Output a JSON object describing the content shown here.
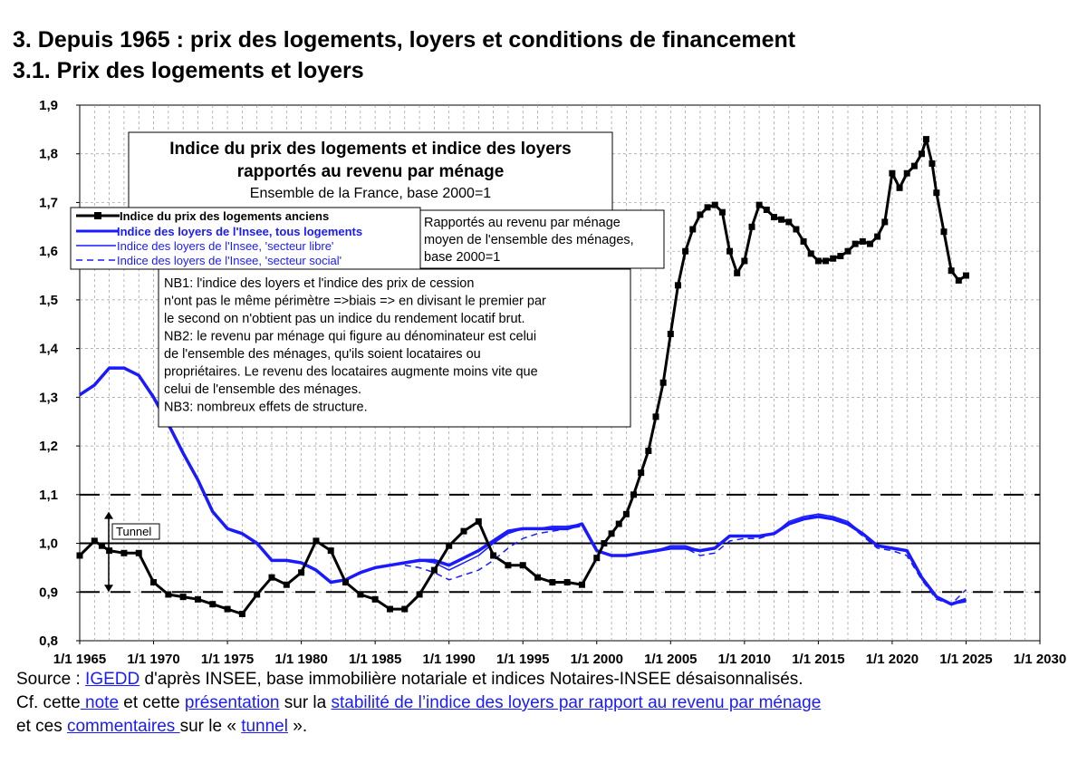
{
  "header": {
    "title": "3. Depuis 1965 : prix des logements, loyers et conditions de financement",
    "subtitle": "3.1. Prix des logements et loyers"
  },
  "chart_data": {
    "type": "line",
    "title": "Indice du prix des logements et indice des loyers",
    "title_line2": "rapportés au revenu par ménage",
    "subtitle": "Ensemble de la France, base 2000=1",
    "ylim": [
      0.8,
      1.9
    ],
    "yticks": [
      "0,8",
      "0,9",
      "1,0",
      "1,1",
      "1,2",
      "1,3",
      "1,4",
      "1,5",
      "1,6",
      "1,7",
      "1,8",
      "1,9"
    ],
    "xlim": [
      1965,
      2030
    ],
    "xticks": [
      "1/1 1965",
      "1/1 1970",
      "1/1 1975",
      "1/1 1980",
      "1/1 1985",
      "1/1 1990",
      "1/1 1995",
      "1/1 2000",
      "1/1 2005",
      "1/1 2010",
      "1/1 2015",
      "1/1 2020",
      "1/1 2025",
      "1/1 2030"
    ],
    "grid": true,
    "legend_position": "top-left",
    "reference_lines": {
      "solid": 1.0,
      "dashed": [
        0.9,
        1.1
      ]
    },
    "tunnel_label": "Tunnel",
    "side_note": [
      "Rapportés au revenu par ménage",
      "moyen de l'ensemble des ménages,",
      "base 2000=1"
    ],
    "notes": [
      "NB1: l'indice des loyers et l'indice des prix de cession",
      "n'ont pas le même périmètre =>biais => en divisant le premier par",
      "le second on n'obtient pas un indice du rendement locatif brut.",
      "NB2: le revenu par ménage qui figure au dénominateur est celui",
      "de l'ensemble des ménages, qu'ils soient locataires ou",
      "propriétaires.  Le revenu des locataires augmente moins vite que",
      "celui de l'ensemble des ménages.",
      "NB3: nombreux effets de structure."
    ],
    "colors": {
      "price": "#000000",
      "rent": "#1a1aff"
    },
    "series": [
      {
        "name": "Indice du prix des logements anciens",
        "style": "black-square-markers",
        "x": [
          1965,
          1966,
          1966.5,
          1967,
          1968,
          1969,
          1970,
          1971,
          1972,
          1973,
          1974,
          1975,
          1976,
          1977,
          1978,
          1979,
          1980,
          1981,
          1982,
          1983,
          1984,
          1985,
          1986,
          1987,
          1988,
          1989,
          1990,
          1991,
          1992,
          1993,
          1994,
          1995,
          1996,
          1997,
          1998,
          1999,
          2000,
          2000.5,
          2001,
          2001.5,
          2002,
          2002.5,
          2003,
          2003.5,
          2004,
          2004.5,
          2005,
          2005.5,
          2006,
          2006.5,
          2007,
          2007.5,
          2008,
          2008.5,
          2009,
          2009.5,
          2010,
          2010.5,
          2011,
          2011.5,
          2012,
          2012.5,
          2013,
          2013.5,
          2014,
          2014.5,
          2015,
          2015.5,
          2016,
          2016.5,
          2017,
          2017.5,
          2018,
          2018.5,
          2019,
          2019.5,
          2020,
          2020.5,
          2021,
          2021.5,
          2022,
          2022.3,
          2022.7,
          2023,
          2023.5,
          2024,
          2024.5,
          2025
        ],
        "values": [
          0.975,
          1.005,
          0.995,
          0.985,
          0.98,
          0.98,
          0.92,
          0.895,
          0.89,
          0.885,
          0.875,
          0.865,
          0.855,
          0.895,
          0.93,
          0.915,
          0.94,
          1.005,
          0.985,
          0.92,
          0.895,
          0.885,
          0.865,
          0.865,
          0.895,
          0.945,
          0.995,
          1.025,
          1.045,
          0.975,
          0.955,
          0.955,
          0.93,
          0.92,
          0.92,
          0.915,
          0.97,
          1.0,
          1.02,
          1.04,
          1.06,
          1.1,
          1.145,
          1.19,
          1.26,
          1.33,
          1.43,
          1.53,
          1.6,
          1.645,
          1.675,
          1.69,
          1.695,
          1.68,
          1.6,
          1.555,
          1.58,
          1.65,
          1.695,
          1.685,
          1.67,
          1.665,
          1.66,
          1.645,
          1.62,
          1.595,
          1.58,
          1.58,
          1.585,
          1.59,
          1.6,
          1.615,
          1.62,
          1.615,
          1.63,
          1.66,
          1.76,
          1.73,
          1.76,
          1.775,
          1.8,
          1.83,
          1.78,
          1.72,
          1.64,
          1.56,
          1.54,
          1.55
        ]
      },
      {
        "name": "Indice des loyers de l'Insee, tous logements",
        "style": "blue-thick",
        "x": [
          1965,
          1966,
          1967,
          1968,
          1969,
          1970,
          1971,
          1972,
          1973,
          1974,
          1975,
          1976,
          1977,
          1978,
          1979,
          1980,
          1981,
          1982,
          1983,
          1984,
          1985,
          1986,
          1987,
          1988,
          1989,
          1990,
          1991,
          1992,
          1993,
          1994,
          1995,
          1996,
          1997,
          1998,
          1999,
          2000,
          2001,
          2002,
          2003,
          2004,
          2005,
          2006,
          2007,
          2008,
          2009,
          2010,
          2011,
          2012,
          2013,
          2014,
          2015,
          2016,
          2017,
          2018,
          2019,
          2020,
          2021,
          2022,
          2023,
          2024,
          2025
        ],
        "values": [
          1.305,
          1.325,
          1.36,
          1.36,
          1.345,
          1.3,
          1.245,
          1.185,
          1.13,
          1.065,
          1.03,
          1.02,
          1.0,
          0.965,
          0.965,
          0.96,
          0.945,
          0.92,
          0.925,
          0.94,
          0.95,
          0.955,
          0.96,
          0.965,
          0.965,
          0.955,
          0.97,
          0.985,
          1.005,
          1.025,
          1.03,
          1.03,
          1.03,
          1.03,
          1.04,
          0.985,
          0.975,
          0.975,
          0.98,
          0.985,
          0.99,
          0.99,
          0.985,
          0.99,
          1.015,
          1.015,
          1.015,
          1.02,
          1.04,
          1.05,
          1.055,
          1.05,
          1.04,
          1.02,
          0.995,
          0.99,
          0.985,
          0.93,
          0.89,
          0.875,
          0.885
        ]
      },
      {
        "name": "Indice des loyers de l'Insee, 'secteur libre'",
        "style": "blue-thin",
        "x": [
          1987,
          1988,
          1989,
          1990,
          1991,
          1992,
          1993,
          1994,
          1995,
          1996,
          1997,
          1998,
          1999,
          2000,
          2001,
          2002,
          2003,
          2004,
          2005,
          2006,
          2007,
          2008,
          2009,
          2010,
          2011,
          2012,
          2013,
          2014,
          2015,
          2016,
          2017,
          2018,
          2019,
          2020,
          2021,
          2022,
          2023,
          2024,
          2025
        ],
        "values": [
          0.96,
          0.965,
          0.96,
          0.945,
          0.96,
          0.975,
          1.0,
          1.02,
          1.03,
          1.03,
          1.035,
          1.035,
          1.04,
          0.985,
          0.975,
          0.975,
          0.98,
          0.985,
          0.995,
          0.995,
          0.985,
          0.99,
          1.015,
          1.015,
          1.015,
          1.02,
          1.045,
          1.055,
          1.06,
          1.055,
          1.045,
          1.02,
          0.995,
          0.99,
          0.985,
          0.93,
          0.89,
          0.875,
          0.88
        ]
      },
      {
        "name": "Indice des loyers de l'Insee, 'secteur social'",
        "style": "blue-dashed",
        "x": [
          1987,
          1988,
          1989,
          1990,
          1991,
          1992,
          1993,
          1994,
          1995,
          1996,
          1997,
          1998,
          1999,
          2000,
          2001,
          2002,
          2003,
          2004,
          2005,
          2006,
          2007,
          2008,
          2009,
          2010,
          2011,
          2012,
          2013,
          2014,
          2015,
          2016,
          2017,
          2018,
          2019,
          2020,
          2021,
          2022,
          2023,
          2024,
          2025
        ],
        "values": [
          0.955,
          0.95,
          0.94,
          0.925,
          0.935,
          0.945,
          0.965,
          0.99,
          1.01,
          1.02,
          1.025,
          1.03,
          1.035,
          0.985,
          0.975,
          0.975,
          0.98,
          0.985,
          0.99,
          0.99,
          0.975,
          0.98,
          1.005,
          1.01,
          1.01,
          1.02,
          1.04,
          1.05,
          1.06,
          1.055,
          1.04,
          1.015,
          0.99,
          0.985,
          0.975,
          0.925,
          0.885,
          0.875,
          0.905
        ]
      }
    ]
  },
  "source": {
    "line1_prefix": "Source : ",
    "line1_link": "IGEDD",
    "line1_suffix": " d'après INSEE, base immobilière notariale et indices Notaires-INSEE désaisonnalisés.",
    "line2_a": "Cf. cette",
    "line2_link1": " note",
    "line2_b": " et cette ",
    "line2_link2": "présentation",
    "line2_c": " sur la ",
    "line2_link3": "stabilité de l’indice des loyers par rapport au revenu par ménage",
    "line3_a": "et ces ",
    "line3_link1": "commentaires ",
    "line3_b": "sur le « ",
    "line3_link2": "tunnel",
    "line3_c": " »."
  }
}
